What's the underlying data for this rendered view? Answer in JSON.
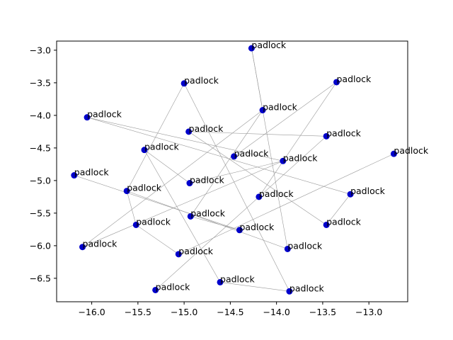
{
  "chart_data": {
    "type": "scatter",
    "title": "",
    "xlabel": "",
    "ylabel": "",
    "xlim": [
      -16.38,
      -12.58
    ],
    "ylim": [
      -6.86,
      -2.86
    ],
    "xticks": [
      -16.0,
      -15.5,
      -15.0,
      -14.5,
      -14.0,
      -13.5,
      -13.0
    ],
    "xtick_labels": [
      "−16.0",
      "−15.5",
      "−15.0",
      "−14.5",
      "−14.0",
      "−13.5",
      "−13.0"
    ],
    "yticks": [
      -6.5,
      -6.0,
      -5.5,
      -5.0,
      -4.5,
      -4.0,
      -3.5,
      -3.0
    ],
    "ytick_labels": [
      "−6.5",
      "−6.0",
      "−5.5",
      "−5.0",
      "−4.5",
      "−4.0",
      "−3.5",
      "−3.0"
    ],
    "grid": false,
    "legend": "none",
    "marker_color": "#0000cc",
    "edge_color": "#999999",
    "points": [
      {
        "x": -14.27,
        "y": -2.97,
        "label": "padlock"
      },
      {
        "x": -15.0,
        "y": -3.51,
        "label": "padlock"
      },
      {
        "x": -13.35,
        "y": -3.49,
        "label": "padlock"
      },
      {
        "x": -16.05,
        "y": -4.03,
        "label": "padlock"
      },
      {
        "x": -14.15,
        "y": -3.92,
        "label": "padlock"
      },
      {
        "x": -14.95,
        "y": -4.25,
        "label": "padlock"
      },
      {
        "x": -13.46,
        "y": -4.32,
        "label": "padlock"
      },
      {
        "x": -15.43,
        "y": -4.53,
        "label": "padlock"
      },
      {
        "x": -14.46,
        "y": -4.63,
        "label": "padlock"
      },
      {
        "x": -13.93,
        "y": -4.7,
        "label": "padlock"
      },
      {
        "x": -12.73,
        "y": -4.59,
        "label": "padlock"
      },
      {
        "x": -16.19,
        "y": -4.92,
        "label": "padlock"
      },
      {
        "x": -14.94,
        "y": -5.04,
        "label": "padlock"
      },
      {
        "x": -15.62,
        "y": -5.16,
        "label": "padlock"
      },
      {
        "x": -14.19,
        "y": -5.25,
        "label": "padlock"
      },
      {
        "x": -13.2,
        "y": -5.21,
        "label": "padlock"
      },
      {
        "x": -14.93,
        "y": -5.55,
        "label": "padlock"
      },
      {
        "x": -15.52,
        "y": -5.68,
        "label": "padlock"
      },
      {
        "x": -13.46,
        "y": -5.68,
        "label": "padlock"
      },
      {
        "x": -14.4,
        "y": -5.76,
        "label": "padlock"
      },
      {
        "x": -16.1,
        "y": -6.02,
        "label": "padlock"
      },
      {
        "x": -15.06,
        "y": -6.13,
        "label": "padlock"
      },
      {
        "x": -13.88,
        "y": -6.05,
        "label": "padlock"
      },
      {
        "x": -14.61,
        "y": -6.56,
        "label": "padlock"
      },
      {
        "x": -15.31,
        "y": -6.68,
        "label": "padlock"
      },
      {
        "x": -13.86,
        "y": -6.7,
        "label": "padlock"
      }
    ],
    "edges": [
      [
        0,
        4
      ],
      [
        0,
        22
      ],
      [
        4,
        16
      ],
      [
        4,
        20
      ],
      [
        1,
        13
      ],
      [
        1,
        25
      ],
      [
        2,
        8
      ],
      [
        2,
        14
      ],
      [
        3,
        9
      ],
      [
        3,
        15
      ],
      [
        5,
        6
      ],
      [
        5,
        18
      ],
      [
        6,
        24
      ],
      [
        7,
        23
      ],
      [
        7,
        12
      ],
      [
        10,
        21
      ],
      [
        11,
        19
      ],
      [
        12,
        9
      ],
      [
        13,
        17
      ],
      [
        13,
        22
      ],
      [
        15,
        18
      ],
      [
        16,
        19
      ],
      [
        17,
        21
      ],
      [
        20,
        9
      ],
      [
        23,
        25
      ]
    ]
  }
}
